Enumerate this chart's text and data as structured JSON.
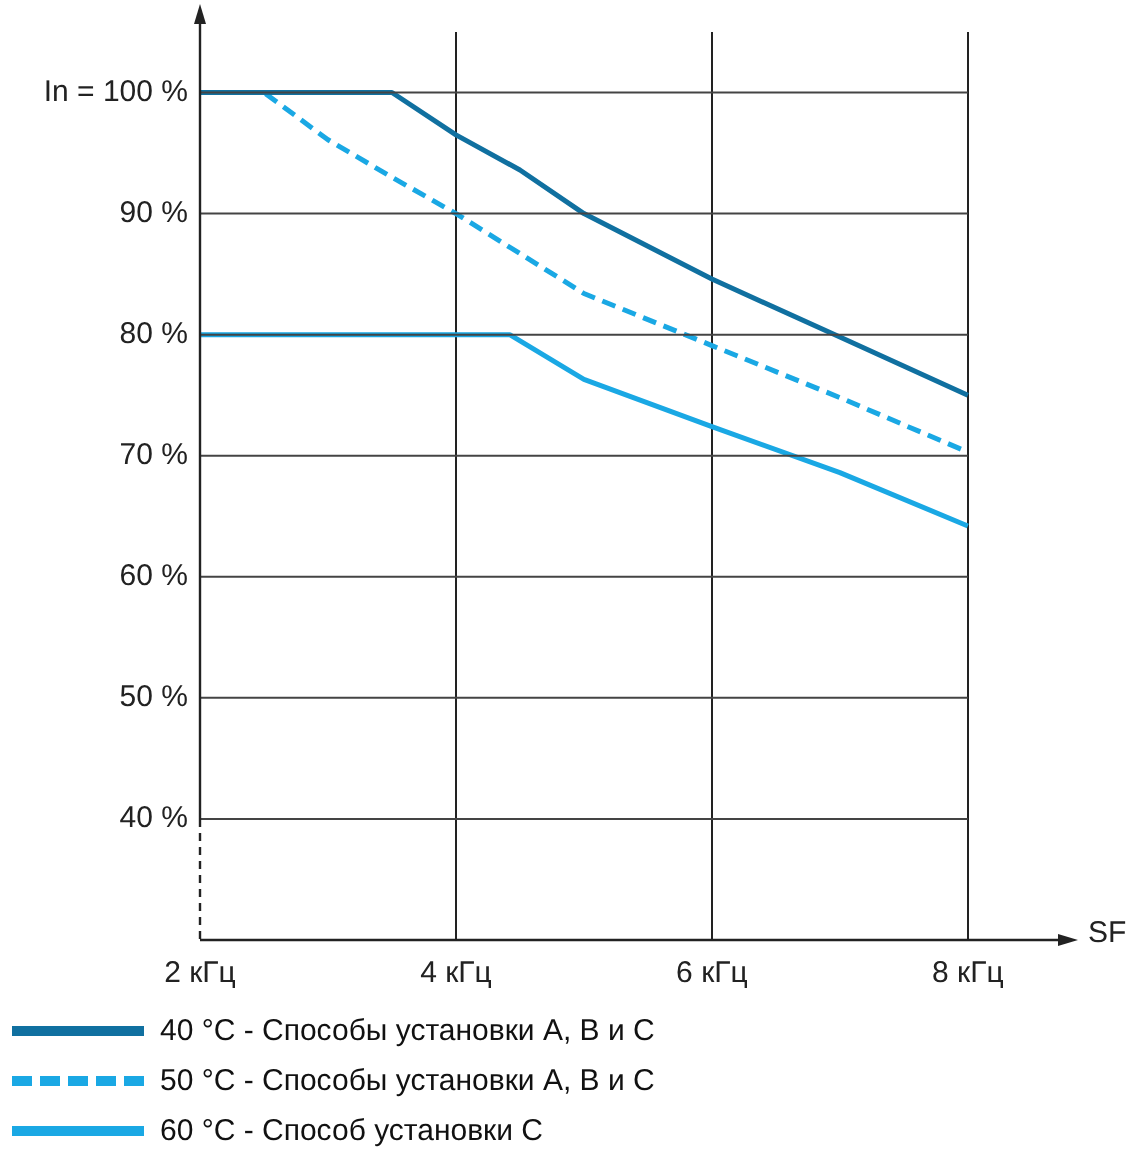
{
  "chart_data": {
    "type": "line",
    "xlabel": "SF",
    "xlim": [
      2,
      8.72
    ],
    "xticks": [
      {
        "value": 2,
        "label": "2 кГц"
      },
      {
        "value": 4,
        "label": "4 кГц"
      },
      {
        "value": 6,
        "label": "6 кГц"
      },
      {
        "value": 8,
        "label": "8 кГц"
      }
    ],
    "ylim": [
      30,
      105
    ],
    "yticks": [
      {
        "value": 40,
        "label": "40 %"
      },
      {
        "value": 50,
        "label": "50 %"
      },
      {
        "value": 60,
        "label": "60 %"
      },
      {
        "value": 70,
        "label": "70 %"
      },
      {
        "value": 80,
        "label": "80 %"
      },
      {
        "value": 90,
        "label": "90 %"
      },
      {
        "value": 100,
        "label": "In = 100 %"
      }
    ],
    "grid": true,
    "legend": "bottom left",
    "marker": "none",
    "series": [
      {
        "name": "40 °C - Способы установки A, B и C",
        "color": "#1070a0",
        "line_style": "solid",
        "x": [
          2,
          3.5,
          4,
          4.5,
          5,
          6,
          7,
          8
        ],
        "values": [
          100,
          100,
          96.5,
          93.6,
          90,
          84.6,
          79.8,
          75
        ]
      },
      {
        "name": "50 °C - Способы установки A, B и C",
        "color": "#1aa8e4",
        "line_style": "dashed",
        "x": [
          2,
          2.5,
          3,
          3.5,
          4,
          5,
          6,
          7,
          8
        ],
        "values": [
          100,
          100,
          96.1,
          93,
          90,
          83.4,
          79.1,
          74.8,
          70.3
        ]
      },
      {
        "name": "60 °C - Способ установки C",
        "color": "#1aa8e4",
        "line_style": "solid",
        "x": [
          2,
          4.42,
          5,
          6,
          7,
          8
        ],
        "values": [
          80,
          80,
          76.3,
          72.4,
          68.6,
          64.2
        ]
      }
    ]
  }
}
